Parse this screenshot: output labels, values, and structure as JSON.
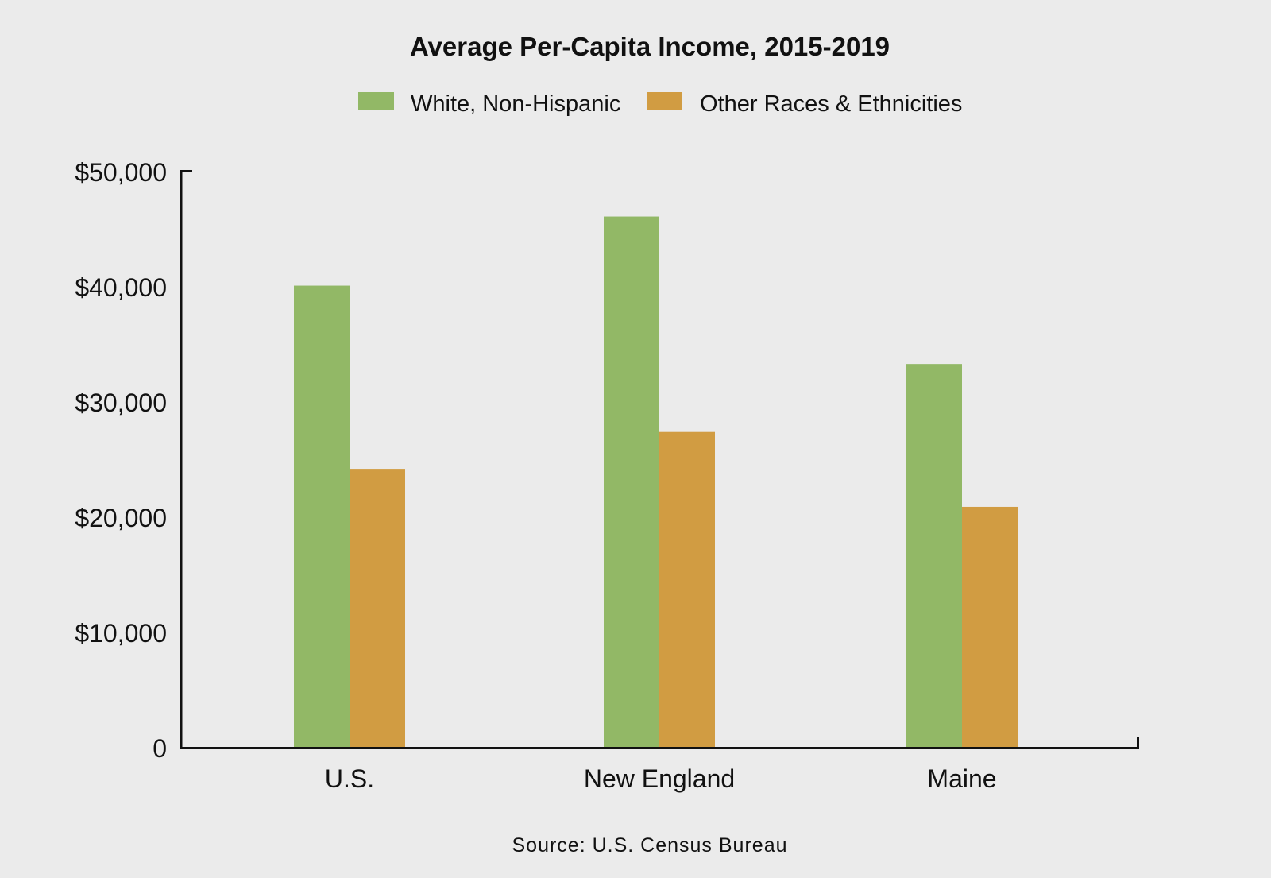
{
  "chart_data": {
    "type": "bar",
    "title": "Average Per-Capita Income, 2015-2019",
    "categories": [
      "U.S.",
      "New England",
      "Maine"
    ],
    "series": [
      {
        "name": "White, Non-Hispanic",
        "color": "#92b866",
        "values": [
          40100,
          46100,
          33300
        ]
      },
      {
        "name": "Other Races & Ethnicities",
        "color": "#d19c42",
        "values": [
          24200,
          27400,
          20900
        ]
      }
    ],
    "yticks": [
      {
        "value": 0,
        "label": "0"
      },
      {
        "value": 10000,
        "label": "$10,000"
      },
      {
        "value": 20000,
        "label": "$20,000"
      },
      {
        "value": 30000,
        "label": "$30,000"
      },
      {
        "value": 40000,
        "label": "$40,000"
      },
      {
        "value": 50000,
        "label": "$50,000"
      }
    ],
    "ylim": [
      0,
      50000
    ],
    "xlabel": "",
    "ylabel": "",
    "grid": false,
    "legend_position": "top-center",
    "source": "Source: U.S. Census Bureau"
  }
}
